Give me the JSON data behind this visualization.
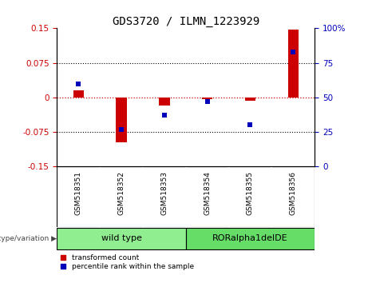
{
  "title": "GDS3720 / ILMN_1223929",
  "categories": [
    "GSM518351",
    "GSM518352",
    "GSM518353",
    "GSM518354",
    "GSM518355",
    "GSM518356"
  ],
  "red_values": [
    0.015,
    -0.098,
    -0.018,
    -0.003,
    -0.008,
    0.148
  ],
  "blue_values": [
    60,
    27,
    37,
    47,
    30,
    83
  ],
  "ylim_left": [
    -0.15,
    0.15
  ],
  "ylim_right": [
    0,
    100
  ],
  "yticks_left": [
    -0.15,
    -0.075,
    0,
    0.075,
    0.15
  ],
  "yticks_right": [
    0,
    25,
    50,
    75,
    100
  ],
  "hlines_dotted": [
    0.075,
    -0.075
  ],
  "hline_red": 0,
  "group1_label": "wild type",
  "group2_label": "RORalpha1delDE",
  "group1_color": "#90EE90",
  "group2_color": "#66DD66",
  "group1_indices": [
    0,
    1,
    2
  ],
  "group2_indices": [
    3,
    4,
    5
  ],
  "legend_red": "transformed count",
  "legend_blue": "percentile rank within the sample",
  "bar_width": 0.25,
  "red_color": "#CC0000",
  "blue_color": "#0000BB",
  "zero_line_color": "#CC0000",
  "dotted_line_color": "#000000",
  "background_color": "#FFFFFF",
  "tick_bg_color": "#BBBBBB",
  "genotype_label": "genotype/variation"
}
